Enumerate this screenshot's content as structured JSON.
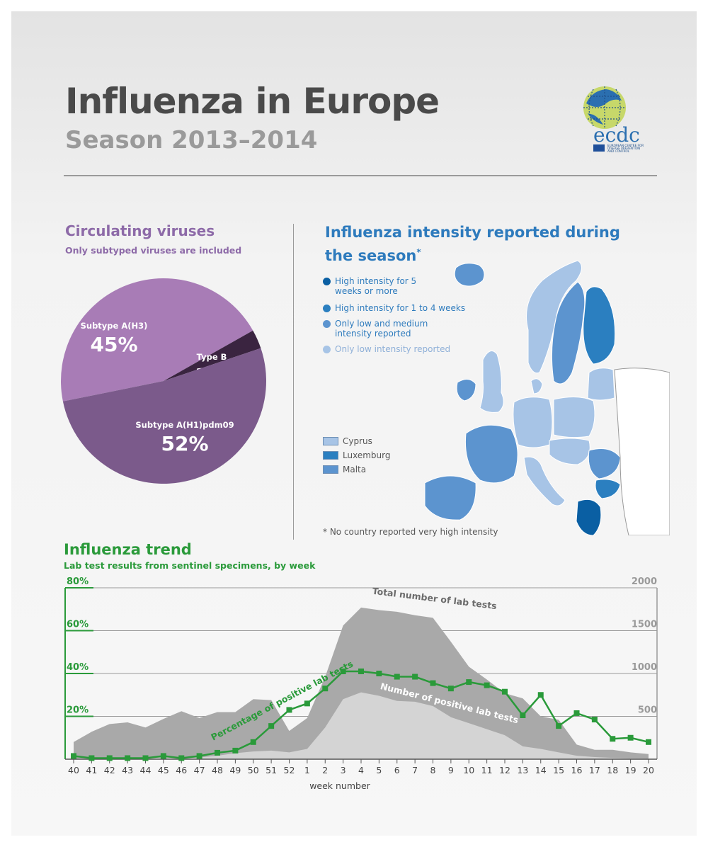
{
  "header": {
    "title": "Influenza in Europe",
    "subtitle": "Season 2013–2014",
    "logo_text": "ecdc",
    "logo_caption": [
      "EUROPEAN CENTRE FOR",
      "DISEASE PREVENTION",
      "AND CONTROL"
    ]
  },
  "viruses": {
    "title": "Circulating viruses",
    "subtitle": "Only subtyped viruses are included"
  },
  "intensity": {
    "title": "Influenza intensity reported during the season",
    "title_mark": "*",
    "legend": [
      {
        "label": "High intensity for 5 weeks or more",
        "color": "#0a5fa3"
      },
      {
        "label": "High intensity for 1 to 4 weeks",
        "color": "#2b7fc0"
      },
      {
        "label": "Only low and medium intensity reported",
        "color": "#5c94cf"
      },
      {
        "label": "Only low intensity reported",
        "color": "#a7c4e6"
      }
    ],
    "small_countries": [
      {
        "label": "Cyprus",
        "color": "#a7c4e6"
      },
      {
        "label": "Luxemburg",
        "color": "#2b7fc0"
      },
      {
        "label": "Malta",
        "color": "#5c94cf"
      }
    ],
    "note": "* No country reported very high intensity"
  },
  "trend": {
    "title": "Influenza trend",
    "subtitle": "Lab test results from sentinel specimens, by week",
    "xlabel": "week number",
    "label_total": "Total number of lab tests",
    "label_positive": "Number of positive lab tests",
    "label_percentage": "Percentage of positive lab tests"
  },
  "chart_data": [
    {
      "type": "pie",
      "slices": [
        {
          "label": "Subtype A(H3)",
          "value": 45,
          "display": "45%",
          "color": "#a87cb6"
        },
        {
          "label": "Type B",
          "value": 3,
          "display": "3%",
          "color": "#3a2440"
        },
        {
          "label": "Subtype A(H1)pdm09",
          "value": 52,
          "display": "52%",
          "color": "#7b5a8b"
        }
      ]
    },
    {
      "type": "area",
      "categories": [
        "40",
        "41",
        "42",
        "43",
        "44",
        "45",
        "46",
        "47",
        "48",
        "49",
        "50",
        "51",
        "52",
        "1",
        "2",
        "3",
        "4",
        "5",
        "6",
        "7",
        "8",
        "9",
        "10",
        "11",
        "12",
        "13",
        "14",
        "15",
        "16",
        "17",
        "18",
        "19",
        "20"
      ],
      "xlabel": "week number",
      "left_axis": {
        "ticks": [
          "20%",
          "40%",
          "60%",
          "80%"
        ],
        "ylim": [
          0,
          80
        ]
      },
      "right_axis": {
        "ticks": [
          "500",
          "1000",
          "1500",
          "2000"
        ],
        "ylim": [
          0,
          2000
        ]
      },
      "series": [
        {
          "name": "Total number of lab tests",
          "axis": "right",
          "color": "#a9a9a9",
          "values": [
            200,
            320,
            410,
            430,
            370,
            470,
            560,
            480,
            550,
            550,
            700,
            690,
            330,
            480,
            960,
            1560,
            1770,
            1740,
            1720,
            1680,
            1650,
            1370,
            1080,
            930,
            770,
            710,
            500,
            460,
            170,
            110,
            110,
            80,
            60
          ]
        },
        {
          "name": "Number of positive lab tests",
          "axis": "right",
          "color": "#d4d4d4",
          "values": [
            10,
            10,
            10,
            10,
            10,
            20,
            10,
            20,
            40,
            70,
            90,
            100,
            80,
            120,
            370,
            700,
            780,
            740,
            680,
            670,
            620,
            490,
            420,
            350,
            280,
            150,
            120,
            80,
            40,
            25,
            15,
            10,
            8
          ]
        },
        {
          "name": "Percentage of positive lab tests",
          "axis": "left",
          "color": "#2a9a3a",
          "values": [
            1.5,
            0.5,
            0.5,
            0.5,
            0.5,
            1.5,
            0.5,
            1.5,
            3,
            4,
            8,
            15.5,
            23,
            26,
            33,
            41,
            41,
            40,
            38.5,
            38.5,
            35.5,
            33,
            36,
            34.5,
            31.5,
            20.5,
            30,
            15.5,
            21.5,
            18.5,
            9.5,
            10,
            8
          ]
        }
      ]
    }
  ]
}
